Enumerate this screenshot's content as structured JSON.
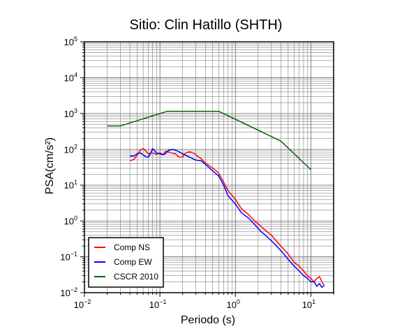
{
  "chart_data": {
    "type": "line",
    "title": "Sitio: Clin Hatillo (SHTH)",
    "xlabel": "Periodo (s)",
    "ylabel": "PSA(cm/s²)",
    "xscale": "log",
    "yscale": "log",
    "xlim": [
      0.01,
      20
    ],
    "ylim": [
      0.01,
      100000
    ],
    "x_ticks": [
      {
        "value": 0.01,
        "base": "10",
        "exp": "−2"
      },
      {
        "value": 0.1,
        "base": "10",
        "exp": "−1"
      },
      {
        "value": 1,
        "base": "10",
        "exp": "0"
      },
      {
        "value": 10,
        "base": "10",
        "exp": "1"
      }
    ],
    "y_ticks": [
      {
        "value": 0.01,
        "base": "10",
        "exp": "−2"
      },
      {
        "value": 0.1,
        "base": "10",
        "exp": "−1"
      },
      {
        "value": 1,
        "base": "10",
        "exp": "0"
      },
      {
        "value": 10,
        "base": "10",
        "exp": "1"
      },
      {
        "value": 100,
        "base": "10",
        "exp": "2"
      },
      {
        "value": 1000,
        "base": "10",
        "exp": "3"
      },
      {
        "value": 10000,
        "base": "10",
        "exp": "4"
      },
      {
        "value": 100000,
        "base": "10",
        "exp": "5"
      }
    ],
    "grid": true,
    "legend_position": "bottom-left",
    "series": [
      {
        "name": "Comp NS",
        "color": "#ff0000",
        "points": [
          [
            0.04,
            48
          ],
          [
            0.045,
            52
          ],
          [
            0.05,
            70
          ],
          [
            0.055,
            95
          ],
          [
            0.06,
            105
          ],
          [
            0.065,
            90
          ],
          [
            0.07,
            75
          ],
          [
            0.08,
            80
          ],
          [
            0.09,
            72
          ],
          [
            0.1,
            80
          ],
          [
            0.11,
            70
          ],
          [
            0.12,
            90
          ],
          [
            0.14,
            80
          ],
          [
            0.16,
            75
          ],
          [
            0.18,
            60
          ],
          [
            0.2,
            62
          ],
          [
            0.22,
            80
          ],
          [
            0.25,
            85
          ],
          [
            0.28,
            78
          ],
          [
            0.3,
            70
          ],
          [
            0.35,
            55
          ],
          [
            0.4,
            42
          ],
          [
            0.5,
            30
          ],
          [
            0.6,
            22
          ],
          [
            0.7,
            12
          ],
          [
            0.8,
            7
          ],
          [
            1.0,
            4
          ],
          [
            1.2,
            2.2
          ],
          [
            1.5,
            1.5
          ],
          [
            1.8,
            1.0
          ],
          [
            2.2,
            0.7
          ],
          [
            2.5,
            0.55
          ],
          [
            3.0,
            0.4
          ],
          [
            4.0,
            0.2
          ],
          [
            5.0,
            0.12
          ],
          [
            6.0,
            0.07
          ],
          [
            7.0,
            0.055
          ],
          [
            8.0,
            0.04
          ],
          [
            9.0,
            0.03
          ],
          [
            10,
            0.025
          ],
          [
            11,
            0.02
          ],
          [
            12,
            0.025
          ],
          [
            13,
            0.028
          ],
          [
            14,
            0.02
          ],
          [
            15,
            0.016
          ]
        ]
      },
      {
        "name": "Comp EW",
        "color": "#0000ff",
        "points": [
          [
            0.04,
            65
          ],
          [
            0.045,
            65
          ],
          [
            0.05,
            75
          ],
          [
            0.055,
            80
          ],
          [
            0.06,
            70
          ],
          [
            0.065,
            62
          ],
          [
            0.07,
            60
          ],
          [
            0.075,
            75
          ],
          [
            0.08,
            105
          ],
          [
            0.09,
            80
          ],
          [
            0.1,
            75
          ],
          [
            0.11,
            70
          ],
          [
            0.12,
            78
          ],
          [
            0.13,
            95
          ],
          [
            0.15,
            100
          ],
          [
            0.17,
            90
          ],
          [
            0.2,
            75
          ],
          [
            0.22,
            68
          ],
          [
            0.25,
            60
          ],
          [
            0.3,
            50
          ],
          [
            0.35,
            48
          ],
          [
            0.4,
            38
          ],
          [
            0.5,
            25
          ],
          [
            0.6,
            18
          ],
          [
            0.7,
            10
          ],
          [
            0.8,
            5
          ],
          [
            1.0,
            3
          ],
          [
            1.2,
            1.7
          ],
          [
            1.5,
            1.2
          ],
          [
            1.8,
            0.8
          ],
          [
            2.2,
            0.5
          ],
          [
            2.5,
            0.4
          ],
          [
            3.0,
            0.28
          ],
          [
            4.0,
            0.15
          ],
          [
            5.0,
            0.085
          ],
          [
            6.0,
            0.055
          ],
          [
            7.0,
            0.04
          ],
          [
            8.0,
            0.03
          ],
          [
            9.0,
            0.025
          ],
          [
            10,
            0.02
          ],
          [
            11,
            0.02
          ],
          [
            12,
            0.015
          ],
          [
            13,
            0.018
          ],
          [
            14,
            0.014
          ],
          [
            15,
            0.016
          ]
        ]
      },
      {
        "name": "CSCR 2010",
        "color": "#006400",
        "points": [
          [
            0.02,
            450
          ],
          [
            0.03,
            450
          ],
          [
            0.125,
            1150
          ],
          [
            0.6,
            1150
          ],
          [
            4.0,
            170
          ],
          [
            10,
            27
          ]
        ]
      }
    ]
  }
}
